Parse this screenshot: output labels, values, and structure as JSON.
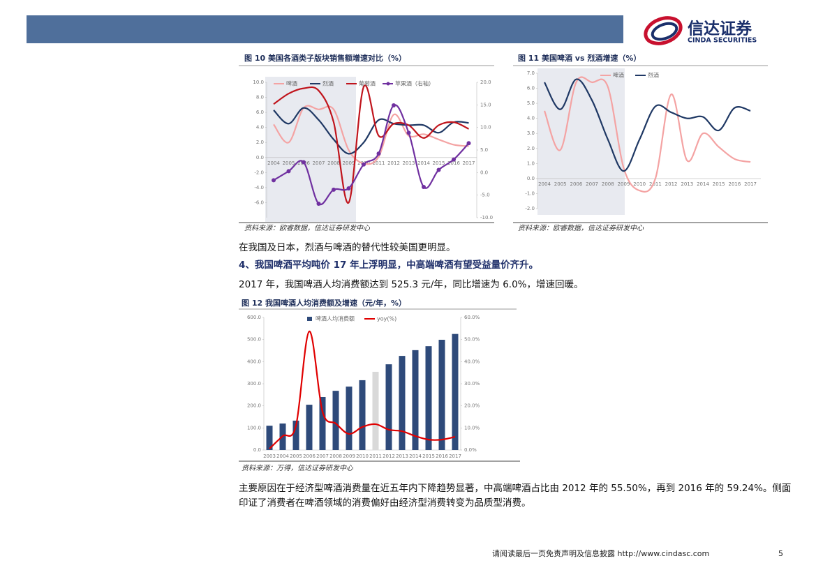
{
  "header": {
    "logo_cn": "信达证券",
    "logo_en": "CINDA SECURITIES"
  },
  "chart_data": [
    {
      "type": "line",
      "title": "图 10 美国各酒类子版块销售额增速对比（%）",
      "source": "资料来源：欧睿数据，信达证券研发中心",
      "categories": [
        "2004",
        "2005",
        "2006",
        "2007",
        "2008",
        "2009",
        "2010",
        "2011",
        "2012",
        "2013",
        "2014",
        "2015",
        "2016",
        "2017"
      ],
      "ylim": [
        -8,
        10
      ],
      "yticks": [
        {
          "value": 10,
          "label": "10.0"
        },
        {
          "value": 8,
          "label": "8.0"
        },
        {
          "value": 6,
          "label": "6.0"
        },
        {
          "value": 4,
          "label": "4.0"
        },
        {
          "value": 2,
          "label": "2.0"
        },
        {
          "value": 0,
          "label": "0.0"
        },
        {
          "value": -2,
          "label": "-2.0"
        },
        {
          "value": -4,
          "label": "-4.0"
        },
        {
          "value": -6,
          "label": "-6.0"
        }
      ],
      "y2lim": [
        -10,
        20
      ],
      "y2ticks": [
        {
          "value": 20,
          "label": "20.0"
        },
        {
          "value": 15,
          "label": "15.0"
        },
        {
          "value": 10,
          "label": "10.0"
        },
        {
          "value": 5,
          "label": "5.0"
        },
        {
          "value": 0,
          "label": "0.0"
        },
        {
          "value": -5,
          "label": "-5.0"
        },
        {
          "value": -10,
          "label": "-10.0"
        }
      ],
      "series": [
        {
          "name": "啤酒",
          "color": "#f4a3a3",
          "values": [
            4.4,
            2.0,
            6.6,
            6.4,
            6.4,
            1.0,
            -0.8,
            0.1,
            5.7,
            2.9,
            3.1,
            2.4,
            1.7,
            1.5
          ]
        },
        {
          "name": "烈酒",
          "color": "#1f3864",
          "values": [
            6.3,
            4.5,
            6.6,
            5.0,
            2.4,
            0.5,
            2.0,
            5.0,
            4.5,
            4.3,
            4.3,
            3.3,
            4.7,
            4.6
          ]
        },
        {
          "name": "葡萄酒",
          "color": "#c0141c",
          "values": [
            7.1,
            8.5,
            9.2,
            8.9,
            4.7,
            -6.0,
            9.4,
            2.9,
            4.5,
            4.3,
            2.6,
            4.3,
            4.7,
            3.8
          ]
        },
        {
          "name": "苹果酒（右轴）",
          "color": "#7030a0",
          "axis": "y2",
          "marker": "circle",
          "values": [
            -1.7,
            0.3,
            2.3,
            -6.9,
            -3.8,
            -3.5,
            1.8,
            4.2,
            14.9,
            8.8,
            -3.2,
            0.6,
            2.9,
            6.5
          ]
        }
      ]
    },
    {
      "type": "line",
      "title": "图 11 美国啤酒 vs 烈酒增速（%）",
      "source": "资料来源：欧睿数据，信达证券研发中心",
      "categories": [
        "2004",
        "2005",
        "2006",
        "2007",
        "2008",
        "2009",
        "2010",
        "2011",
        "2012",
        "2013",
        "2014",
        "2015",
        "2016",
        "2017"
      ],
      "ylim": [
        -2,
        7
      ],
      "yticks": [
        {
          "value": 7,
          "label": "7.0"
        },
        {
          "value": 6,
          "label": "6.0"
        },
        {
          "value": 5,
          "label": "5.0"
        },
        {
          "value": 4,
          "label": "4.0"
        },
        {
          "value": 3,
          "label": "3.0"
        },
        {
          "value": 2,
          "label": "2.0"
        },
        {
          "value": 1,
          "label": "1.0"
        },
        {
          "value": 0,
          "label": "0.0"
        },
        {
          "value": -1,
          "label": "-1.0"
        },
        {
          "value": -2,
          "label": "-2.0"
        }
      ],
      "series": [
        {
          "name": "啤酒",
          "color": "#f4a3a3",
          "values": [
            4.5,
            1.9,
            6.4,
            6.4,
            6.1,
            0.7,
            -0.8,
            0.0,
            5.6,
            1.2,
            3.0,
            2.1,
            1.3,
            1.1
          ]
        },
        {
          "name": "烈酒",
          "color": "#1f3864",
          "values": [
            6.4,
            4.6,
            6.6,
            5.2,
            2.6,
            0.5,
            2.6,
            4.8,
            4.4,
            4.0,
            4.1,
            3.2,
            4.7,
            4.5
          ]
        }
      ]
    },
    {
      "type": "bar",
      "title": "图 12 我国啤酒人均消费额及增速（元/年，%）",
      "source": "资料来源：万得，信达证券研发中心",
      "categories": [
        "2003",
        "2004",
        "2005",
        "2006",
        "2007",
        "2008",
        "2009",
        "2010",
        "2011",
        "2012",
        "2013",
        "2014",
        "2015",
        "2016",
        "2017"
      ],
      "ylim": [
        0,
        600
      ],
      "yticks": [
        {
          "value": 600,
          "label": "600.0"
        },
        {
          "value": 500,
          "label": "500.0"
        },
        {
          "value": 400,
          "label": "400.0"
        },
        {
          "value": 300,
          "label": "300.0"
        },
        {
          "value": 200,
          "label": "200.0"
        },
        {
          "value": 100,
          "label": "100.0"
        },
        {
          "value": 0,
          "label": "0.0"
        }
      ],
      "y2lim": [
        0,
        60
      ],
      "y2ticks": [
        {
          "value": 60,
          "label": "60.0%"
        },
        {
          "value": 50,
          "label": "50.0%"
        },
        {
          "value": 40,
          "label": "40.0%"
        },
        {
          "value": 30,
          "label": "30.0%"
        },
        {
          "value": 20,
          "label": "20.0%"
        },
        {
          "value": 10,
          "label": "10.0%"
        },
        {
          "value": 0,
          "label": "0.0%"
        }
      ],
      "series": [
        {
          "name": "啤酒人均消费额",
          "color": "#2e4a7a",
          "colors": [
            "#2e4a7a",
            "#2e4a7a",
            "#2e4a7a",
            "#2e4a7a",
            "#2e4a7a",
            "#2e4a7a",
            "#2e4a7a",
            "#2e4a7a",
            "#d9d9d9",
            "#2e4a7a",
            "#2e4a7a",
            "#2e4a7a",
            "#2e4a7a",
            "#2e4a7a",
            "#2e4a7a"
          ],
          "values": [
            110,
            120,
            133,
            205,
            240,
            268,
            287,
            316,
            354,
            388,
            426,
            452,
            470,
            499,
            525.3
          ]
        },
        {
          "name": "yoy(%)",
          "type": "line",
          "axis": "y2",
          "color": "#e00000",
          "values": [
            0.6,
            6.3,
            11,
            53.7,
            17.4,
            12,
            7.3,
            10.4,
            11.7,
            9.2,
            8.5,
            6.3,
            4.7,
            4.7,
            6.0
          ]
        }
      ]
    }
  ],
  "body": {
    "p1": "在我国及日本，烈酒与啤酒的替代性较美国更明显。",
    "heading": "4、我国啤酒平均吨价 17 年上浮明显，中高端啤酒有望受益量价齐升。",
    "p2": "2017 年，我国啤酒人均消费额达到 525.3 元/年，同比增速为 6.0%，增速回暖。",
    "p3": "主要原因在于经济型啤酒消费量在近五年内下降趋势显著，中高端啤酒占比由 2012 年的 55.50%，再到 2016 年的 59.24%。侧面印证了消费者在啤酒领域的消费偏好由经济型消费转变为品质型消费。"
  },
  "footer": {
    "disclaimer": "请阅读最后一页免责声明及信息披露",
    "url": "http://www.cindasc.com",
    "page": "5"
  }
}
